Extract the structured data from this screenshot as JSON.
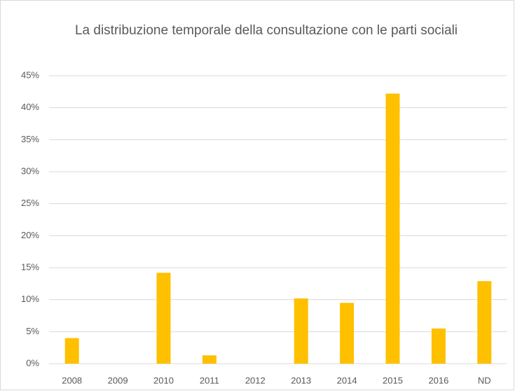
{
  "chart_data": {
    "type": "bar",
    "title": "La distribuzione temporale della consultazione con le parti sociali",
    "categories": [
      "2008",
      "2009",
      "2010",
      "2011",
      "2012",
      "2013",
      "2014",
      "2015",
      "2016",
      "ND"
    ],
    "values": [
      4.0,
      0,
      14.2,
      1.3,
      0,
      10.2,
      9.5,
      42.2,
      5.5,
      12.9
    ],
    "color": "#ffc000",
    "ylim": [
      0,
      45
    ],
    "yticks": [
      {
        "value": 0,
        "label": "0%"
      },
      {
        "value": 5,
        "label": "5%"
      },
      {
        "value": 10,
        "label": "10%"
      },
      {
        "value": 15,
        "label": "15%"
      },
      {
        "value": 20,
        "label": "20%"
      },
      {
        "value": 25,
        "label": "25%"
      },
      {
        "value": 30,
        "label": "30%"
      },
      {
        "value": 35,
        "label": "35%"
      },
      {
        "value": 40,
        "label": "40%"
      },
      {
        "value": 45,
        "label": "45%"
      }
    ],
    "grid": true
  }
}
